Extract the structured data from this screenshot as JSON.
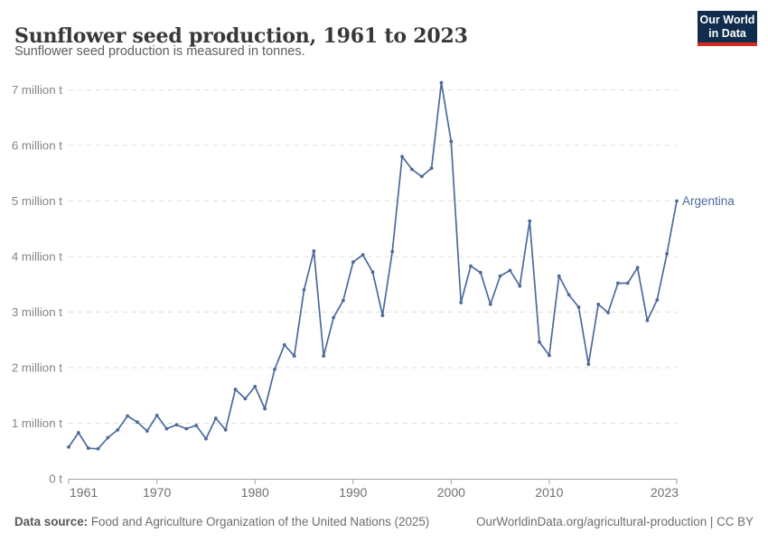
{
  "header": {
    "title": "Sunflower seed production, 1961 to 2023",
    "subtitle": "Sunflower seed production is measured in tonnes."
  },
  "logo": {
    "line1": "Our World",
    "line2": "in Data",
    "bg_color": "#102d4e",
    "bar_color": "#d42a20"
  },
  "chart_data": {
    "type": "line",
    "title": "Sunflower seed production, 1961 to 2023",
    "unit": "tonnes",
    "x_range": [
      1961,
      2023
    ],
    "ylim": [
      0,
      7.3
    ],
    "grid": "dashed-horizontal",
    "legend": "series-end-label",
    "line_color": "#4C6A9C",
    "grid_color": "#dcdcdc",
    "axis_color": "#a3a3a3",
    "x_ticks": [
      1961,
      1970,
      1980,
      1990,
      2000,
      2010,
      2023
    ],
    "y_ticks": [
      {
        "value": 0,
        "label": "0 t"
      },
      {
        "value": 1,
        "label": "1 million t"
      },
      {
        "value": 2,
        "label": "2 million t"
      },
      {
        "value": 3,
        "label": "3 million t"
      },
      {
        "value": 4,
        "label": "4 million t"
      },
      {
        "value": 5,
        "label": "5 million t"
      },
      {
        "value": 6,
        "label": "6 million t"
      },
      {
        "value": 7,
        "label": "7 million t"
      }
    ],
    "series": [
      {
        "name": "Argentina",
        "color": "#4C6A9C",
        "years": [
          1961,
          1962,
          1963,
          1964,
          1965,
          1966,
          1967,
          1968,
          1969,
          1970,
          1971,
          1972,
          1973,
          1974,
          1975,
          1976,
          1977,
          1978,
          1979,
          1980,
          1981,
          1982,
          1983,
          1984,
          1985,
          1986,
          1987,
          1988,
          1989,
          1990,
          1991,
          1992,
          1993,
          1994,
          1995,
          1996,
          1997,
          1998,
          1999,
          2000,
          2001,
          2002,
          2003,
          2004,
          2005,
          2006,
          2007,
          2008,
          2009,
          2010,
          2011,
          2012,
          2013,
          2014,
          2015,
          2016,
          2017,
          2018,
          2019,
          2020,
          2021,
          2022,
          2023
        ],
        "values_million_tonnes": [
          0.57,
          0.83,
          0.55,
          0.54,
          0.74,
          0.88,
          1.13,
          1.02,
          0.86,
          1.14,
          0.9,
          0.97,
          0.9,
          0.96,
          0.72,
          1.09,
          0.88,
          1.61,
          1.44,
          1.66,
          1.26,
          1.97,
          2.41,
          2.21,
          3.4,
          4.1,
          2.21,
          2.9,
          3.21,
          3.9,
          4.03,
          3.72,
          2.94,
          4.09,
          5.8,
          5.57,
          5.44,
          5.59,
          7.13,
          6.07,
          3.17,
          3.83,
          3.71,
          3.14,
          3.65,
          3.75,
          3.47,
          4.64,
          2.46,
          2.22,
          3.65,
          3.31,
          3.09,
          2.06,
          3.14,
          2.99,
          3.52,
          3.52,
          3.8,
          2.85,
          3.22,
          4.05,
          5.0
        ]
      }
    ]
  },
  "footer": {
    "source_label": "Data source:",
    "source_text": " Food and Agriculture Organization of the United Nations (2025)",
    "credit": "OurWorldinData.org/agricultural-production | CC BY"
  }
}
